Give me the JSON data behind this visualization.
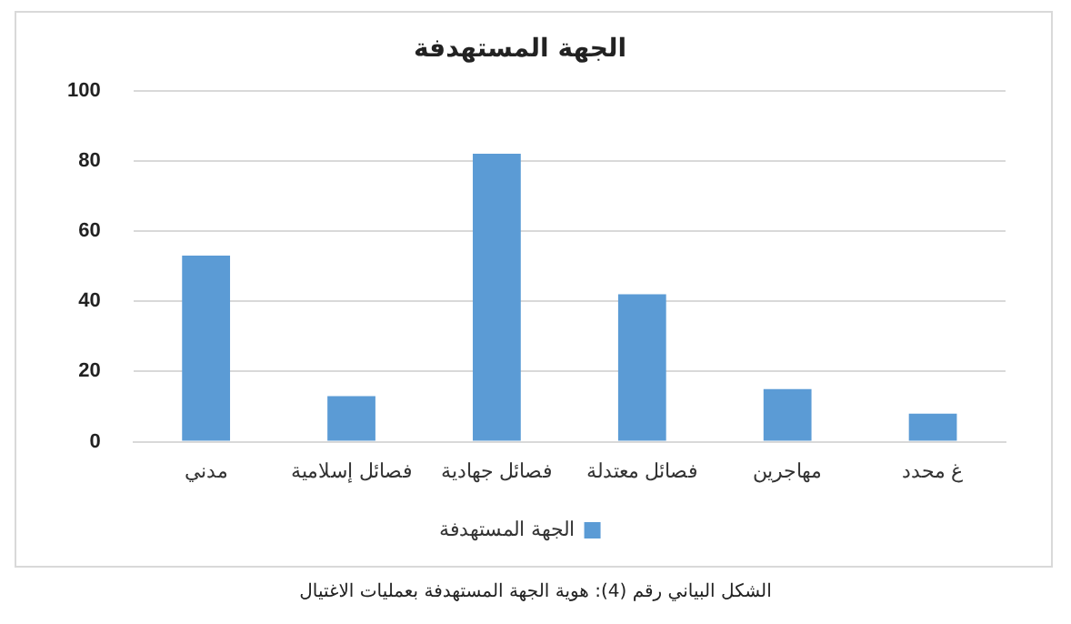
{
  "chart_data": {
    "type": "bar",
    "title": "الجهة المستهدفة",
    "categories": [
      "مدني",
      "فصائل إسلامية",
      "فصائل جهادية",
      "فصائل معتدلة",
      "مهاجرين",
      "غ محدد"
    ],
    "series": [
      {
        "name": "الجهة المستهدفة",
        "color": "#5b9bd5",
        "values": [
          53,
          13,
          82,
          42,
          15,
          8
        ]
      }
    ],
    "ylim": [
      0,
      100
    ],
    "yticks": [
      0,
      20,
      40,
      60,
      80,
      100
    ],
    "grid": "y",
    "legend": "bottom",
    "annotations": [
      "الشكل البياني رقم (4): هوية الجهة المستهدفة بعمليات الاغتيال"
    ]
  }
}
